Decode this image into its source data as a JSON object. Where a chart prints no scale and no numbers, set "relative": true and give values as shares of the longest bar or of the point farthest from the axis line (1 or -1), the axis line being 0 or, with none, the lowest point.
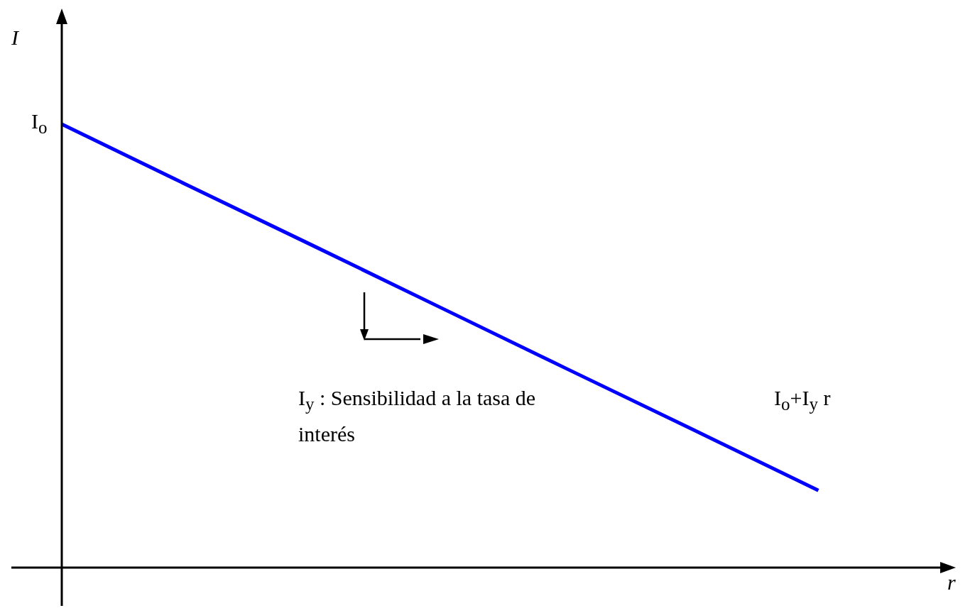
{
  "chart_data": {
    "type": "line",
    "relative": true,
    "xlabel": "r",
    "ylabel": "I",
    "categories": [
      null,
      null,
      null,
      null,
      null,
      null,
      null,
      null
    ],
    "series": [
      {
        "color": "#0000ff",
        "values": [
          1,
          0.862,
          0.725,
          0.587,
          0.449,
          0.312,
          0.174,
          null
        ]
      }
    ],
    "annotations": [
      "I$_{o}$",
      "I$_{y}$ : Sensibilidad a la tasa de interés",
      "I$_{o}$+I$_{y}$ r"
    ],
    "marker": "none",
    "line_style": "solid"
  }
}
